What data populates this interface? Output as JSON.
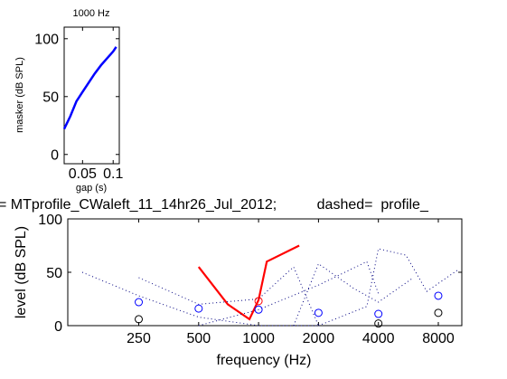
{
  "chart_data": [
    {
      "type": "line",
      "title": "1000 Hz",
      "xlabel": "gap (s)",
      "ylabel": "masker (dB SPL)",
      "xlim": [
        0.02,
        0.11
      ],
      "ylim": [
        -8,
        110
      ],
      "x_ticks": [
        0.05,
        0.1
      ],
      "x_tick_labels": [
        "0.05",
        "0.1"
      ],
      "y_ticks": [
        0,
        50,
        100
      ],
      "series": [
        {
          "color": "#0000ff",
          "x": [
            0.02,
            0.03,
            0.04,
            0.05,
            0.06,
            0.07,
            0.08,
            0.09,
            0.1,
            0.105
          ],
          "y": [
            22,
            33,
            46,
            54,
            62,
            70,
            77,
            83,
            89,
            93
          ]
        }
      ]
    },
    {
      "type": "line",
      "title": "= MTprofile_CWaleft_11_14hr26_Jul_2012;          dashed=  profile_",
      "xlabel": "frequency (Hz)",
      "ylabel": "level (dB SPL)",
      "xscale": "log",
      "xlim": [
        110,
        10500
      ],
      "ylim": [
        0,
        100
      ],
      "x_ticks": [
        250,
        500,
        1000,
        2000,
        4000,
        8000
      ],
      "y_ticks": [
        0,
        50,
        100
      ],
      "series": [
        {
          "style": "solid",
          "color": "#ff0000",
          "x": [
            500,
            700,
            900,
            1000,
            1100,
            1600
          ],
          "y": [
            55,
            20,
            6,
            24,
            60,
            75
          ]
        },
        {
          "style": "dotted",
          "color": "#000080",
          "x": [
            130,
            250,
            500,
            1000,
            2000
          ],
          "y": [
            50,
            28,
            8,
            0,
            0
          ]
        },
        {
          "style": "dotted",
          "color": "#000080",
          "x": [
            250,
            500,
            1000,
            1500,
            2000
          ],
          "y": [
            45,
            20,
            25,
            55,
            0
          ]
        },
        {
          "style": "dotted",
          "color": "#000080",
          "x": [
            500,
            1000,
            2000,
            3500,
            4000
          ],
          "y": [
            0,
            15,
            38,
            60,
            30
          ]
        },
        {
          "style": "dotted",
          "color": "#000080",
          "x": [
            1500,
            2000,
            3000,
            4000,
            6000
          ],
          "y": [
            0,
            58,
            35,
            22,
            45
          ]
        },
        {
          "style": "dotted",
          "color": "#000080",
          "x": [
            2000,
            3500,
            4000,
            5500,
            7000,
            10000
          ],
          "y": [
            0,
            18,
            72,
            66,
            32,
            52
          ]
        },
        {
          "style": "markers",
          "marker": "circle",
          "color": "#0000ff",
          "x": [
            250,
            500,
            1000,
            2000,
            4000,
            8000
          ],
          "y": [
            22,
            16,
            15,
            12,
            11,
            28
          ]
        },
        {
          "style": "markers",
          "marker": "circle",
          "color": "#ff0000",
          "x": [
            1000
          ],
          "y": [
            23
          ]
        },
        {
          "style": "markers",
          "marker": "circle",
          "color": "#000000",
          "x": [
            250,
            4000,
            8000
          ],
          "y": [
            6,
            2,
            12
          ]
        }
      ]
    }
  ]
}
